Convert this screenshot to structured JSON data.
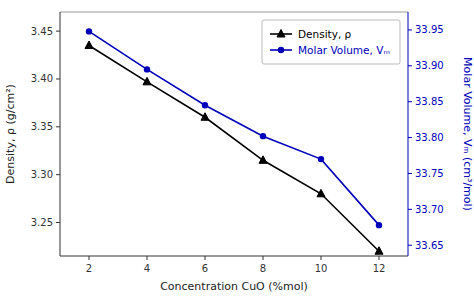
{
  "chart_data": {
    "type": "line",
    "xlabel": "Concentration CuO (%mol)",
    "ylabel": "Density, ρ (g/cm²)",
    "y2label": "Molar Volume, Vₘ (cm³/mol)",
    "x": [
      2,
      4,
      6,
      8,
      10,
      12
    ],
    "series": [
      {
        "name": "Density, ρ",
        "color": "#000000",
        "marker": "triangle",
        "line_style": "solid",
        "axis": "y",
        "values": [
          3.435,
          3.397,
          3.36,
          3.315,
          3.28,
          3.22
        ]
      },
      {
        "name": "Molar Volume, Vₘ",
        "color": "#0000bb",
        "marker": "circle",
        "line_style": "solid",
        "axis": "y2",
        "values": [
          33.948,
          33.895,
          33.845,
          33.802,
          33.77,
          33.678
        ]
      }
    ],
    "xlim": [
      1,
      13
    ],
    "xticks": [
      2,
      4,
      6,
      8,
      10,
      12
    ],
    "ylim": [
      3.215,
      3.47
    ],
    "yticks": [
      3.25,
      {
        "value": 3.3,
        "label": "3.30"
      },
      3.35,
      {
        "value": 3.4,
        "label": "3.40"
      },
      3.45
    ],
    "y2lim": [
      33.635,
      33.975
    ],
    "y2ticks": [
      33.65,
      {
        "value": 33.7,
        "label": "33.70"
      },
      33.75,
      {
        "value": 33.8,
        "label": "33.80"
      },
      33.85,
      {
        "value": 33.9,
        "label": "33.90"
      },
      33.95
    ],
    "grid": false,
    "legend": "upper right"
  }
}
